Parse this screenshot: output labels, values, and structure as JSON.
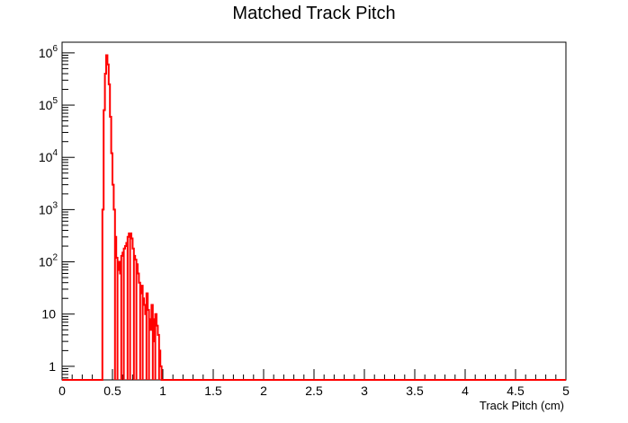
{
  "chart_data": {
    "type": "line",
    "title": "Matched Track Pitch",
    "xlabel": "Track Pitch (cm)",
    "ylabel": "",
    "xlim": [
      0,
      5
    ],
    "ylim": [
      0.55,
      1600000
    ],
    "yscale": "log",
    "grid": false,
    "legend": "none",
    "x_ticks": [
      "0",
      "0.5",
      "1",
      "1.5",
      "2",
      "2.5",
      "3",
      "3.5",
      "4",
      "4.5",
      "5"
    ],
    "y_ticks": [
      {
        "mantissa": "1",
        "exp": ""
      },
      {
        "mantissa": "10",
        "exp": ""
      },
      {
        "mantissa": "10",
        "exp": "2"
      },
      {
        "mantissa": "10",
        "exp": "3"
      },
      {
        "mantissa": "10",
        "exp": "4"
      },
      {
        "mantissa": "10",
        "exp": "5"
      },
      {
        "mantissa": "10",
        "exp": "6"
      }
    ],
    "series": [
      {
        "color": "#ff0000",
        "bin_width": 0.0125,
        "x": [
          0.0,
          0.4,
          0.4125,
          0.425,
          0.4375,
          0.45,
          0.4625,
          0.475,
          0.4875,
          0.5,
          0.5125,
          0.525,
          0.5375,
          0.55,
          0.5625,
          0.575,
          0.5875,
          0.6,
          0.6125,
          0.625,
          0.6375,
          0.65,
          0.6625,
          0.675,
          0.6875,
          0.7,
          0.7125,
          0.725,
          0.7375,
          0.75,
          0.7625,
          0.775,
          0.7875,
          0.8,
          0.8125,
          0.825,
          0.8375,
          0.85,
          0.8625,
          0.875,
          0.8875,
          0.9,
          0.9125,
          0.925,
          0.9375,
          0.95,
          0.9625,
          0.975,
          0.9875,
          1.0,
          1.0125,
          1.025,
          1.0375,
          1.05,
          1.0625,
          1.075,
          1.0875,
          1.1,
          1.1125,
          1.125,
          1.1375,
          1.15,
          1.1625,
          1.175,
          1.1875,
          1.2,
          1.2125,
          1.225,
          1.2375,
          1.25,
          1.2625,
          1.275,
          1.2875,
          1.3,
          1.3125,
          1.325,
          1.3375,
          1.35,
          1.3625,
          1.375,
          1.3875,
          1.4,
          1.4125,
          1.425,
          1.4375,
          1.45,
          1.4625,
          1.475,
          1.4875,
          1.5,
          1.5125,
          1.525,
          1.5375,
          1.55,
          1.5625,
          1.575,
          1.5875,
          1.6,
          1.6125,
          1.625,
          1.6375,
          1.65,
          1.6625,
          1.675,
          1.6875,
          1.7,
          1.7125,
          1.725,
          1.8,
          2.0,
          2.0375,
          2.05,
          2.1875,
          2.2125,
          2.225,
          2.4375,
          3.325,
          3.4,
          3.4375,
          4.675,
          4.9
        ],
        "y": [
          0,
          1000,
          80000,
          400000,
          900000,
          600000,
          250000,
          60000,
          12000,
          3000,
          1000,
          300,
          120,
          70,
          100,
          60,
          130,
          150,
          180,
          200,
          230,
          300,
          350,
          350,
          280,
          180,
          130,
          110,
          90,
          60,
          40,
          25,
          35,
          20,
          15,
          10,
          25,
          12,
          8,
          5,
          15,
          8,
          3,
          10,
          6,
          4,
          2,
          1,
          0,
          0,
          0,
          0,
          0,
          0,
          0,
          0,
          0,
          0,
          0,
          0,
          0,
          0,
          0,
          0,
          0,
          0,
          0,
          0,
          0,
          0,
          0,
          0,
          0,
          0,
          0,
          0,
          0,
          0,
          0,
          0,
          0,
          0,
          0,
          0,
          0,
          0,
          0,
          0,
          0,
          0,
          0,
          0,
          0,
          0,
          0,
          0,
          0,
          0,
          0,
          0,
          0,
          0,
          0,
          0,
          0,
          0,
          0,
          0,
          0,
          0,
          0,
          0,
          0,
          0,
          0,
          0,
          0,
          0,
          0,
          0,
          0
        ]
      }
    ]
  }
}
